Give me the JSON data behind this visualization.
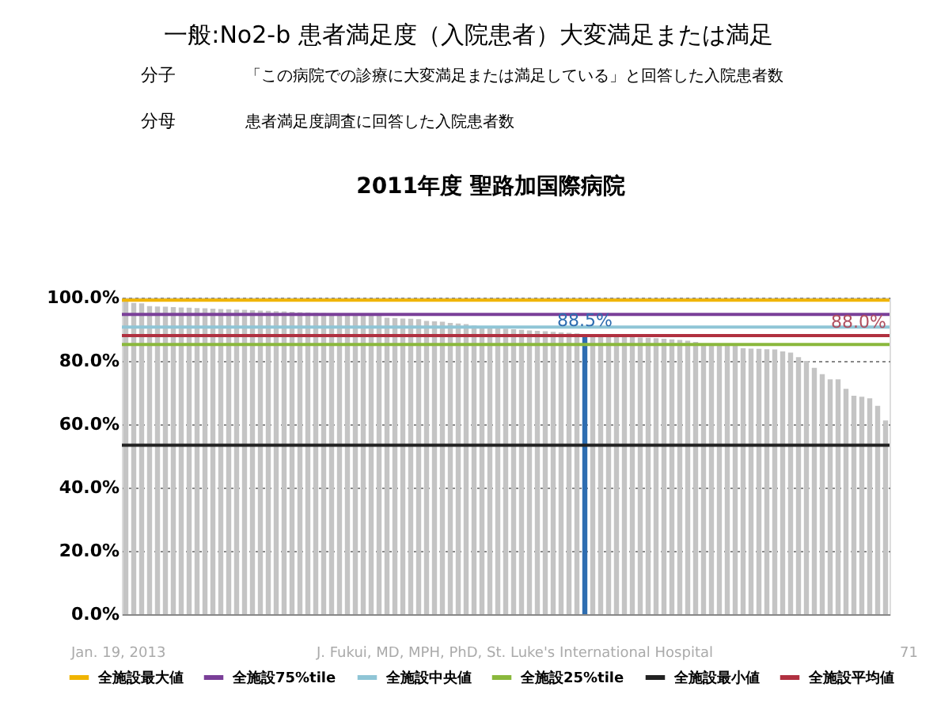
{
  "chart_data": {
    "type": "bar",
    "title": "一般:No2-b 患者満足度（入院患者）大変満足または満足",
    "subtitle": "2011年度 聖路加国際病院",
    "annotations": [
      "分子",
      "「この病院での診療に大変満足または満足している」と回答した入院患者数",
      "分母",
      "患者満足度調査に回答した入院患者数",
      "Jan. 19, 2013",
      "J. Fukui, MD, MPH, PhD, St. Luke's International Hospital",
      "71",
      {
        "text": "88.0%",
        "y": 88.0
      }
    ],
    "categories": [
      null,
      null,
      null,
      null,
      null,
      null,
      null,
      null,
      null,
      null,
      null,
      null,
      null,
      null,
      null,
      null,
      null,
      null,
      null,
      null,
      null,
      null,
      null,
      null,
      null,
      null,
      null,
      null,
      null,
      null,
      null,
      null,
      null,
      null,
      null,
      null,
      null,
      null,
      null,
      null,
      null,
      null,
      null,
      null,
      null,
      null,
      null,
      null,
      null,
      null,
      null,
      null,
      null,
      null,
      null,
      null,
      null,
      null,
      null,
      null,
      null,
      null,
      null,
      null,
      null,
      null,
      null,
      null,
      null,
      null,
      null,
      null,
      null,
      null,
      null,
      null,
      null,
      null,
      null,
      null,
      null,
      null,
      null,
      null,
      null,
      null,
      null,
      null,
      null,
      null,
      null,
      null,
      null,
      null,
      null,
      null,
      null
    ],
    "values": [
      99.0,
      98.3,
      98.2,
      97.3,
      97.2,
      97.1,
      97.0,
      96.9,
      96.8,
      96.7,
      96.6,
      96.5,
      96.4,
      96.3,
      96.2,
      96.1,
      96.0,
      95.9,
      95.8,
      95.7,
      95.6,
      95.5,
      95.4,
      95.3,
      95.2,
      95.1,
      95.0,
      94.9,
      94.8,
      94.7,
      94.6,
      94.5,
      94.4,
      93.6,
      93.5,
      93.4,
      93.3,
      93.2,
      92.6,
      92.5,
      92.4,
      92.0,
      91.8,
      91.6,
      91.2,
      91.0,
      90.8,
      90.6,
      90.2,
      90.0,
      89.8,
      89.6,
      89.5,
      89.4,
      89.2,
      89.0,
      88.9,
      88.7,
      88.5,
      88.2,
      87.9,
      87.8,
      87.7,
      87.6,
      87.5,
      87.4,
      87.3,
      87.2,
      87.0,
      86.8,
      86.6,
      86.4,
      86.0,
      85.4,
      85.3,
      85.2,
      85.1,
      85.0,
      84.0,
      83.9,
      83.8,
      83.7,
      83.6,
      83.0,
      82.6,
      81.2,
      80.0,
      77.8,
      75.8,
      74.2,
      74.2,
      71.2,
      69.0,
      68.7,
      68.2,
      65.8,
      61.2
    ],
    "colors": [
      "#c4c4c4",
      "#c4c4c4",
      "#c4c4c4",
      "#c4c4c4",
      "#c4c4c4",
      "#c4c4c4",
      "#c4c4c4",
      "#c4c4c4",
      "#c4c4c4",
      "#c4c4c4",
      "#c4c4c4",
      "#c4c4c4",
      "#c4c4c4",
      "#c4c4c4",
      "#c4c4c4",
      "#c4c4c4",
      "#c4c4c4",
      "#c4c4c4",
      "#c4c4c4",
      "#c4c4c4",
      "#c4c4c4",
      "#c4c4c4",
      "#c4c4c4",
      "#c4c4c4",
      "#c4c4c4",
      "#c4c4c4",
      "#c4c4c4",
      "#c4c4c4",
      "#c4c4c4",
      "#c4c4c4",
      "#c4c4c4",
      "#c4c4c4",
      "#c4c4c4",
      "#c4c4c4",
      "#c4c4c4",
      "#c4c4c4",
      "#c4c4c4",
      "#c4c4c4",
      "#c4c4c4",
      "#c4c4c4",
      "#c4c4c4",
      "#c4c4c4",
      "#c4c4c4",
      "#c4c4c4",
      "#c4c4c4",
      "#c4c4c4",
      "#c4c4c4",
      "#c4c4c4",
      "#c4c4c4",
      "#c4c4c4",
      "#c4c4c4",
      "#c4c4c4",
      "#c4c4c4",
      "#c4c4c4",
      "#c4c4c4",
      "#c4c4c4",
      "#c4c4c4",
      "#c4c4c4",
      "#2e6db0",
      "#c4c4c4",
      "#c4c4c4",
      "#c4c4c4",
      "#c4c4c4",
      "#c4c4c4",
      "#c4c4c4",
      "#c4c4c4",
      "#c4c4c4",
      "#c4c4c4",
      "#c4c4c4",
      "#c4c4c4",
      "#c4c4c4",
      "#c4c4c4",
      "#c4c4c4",
      "#c4c4c4",
      "#c4c4c4",
      "#c4c4c4",
      "#c4c4c4",
      "#c4c4c4",
      "#c4c4c4",
      "#c4c4c4",
      "#c4c4c4",
      "#c4c4c4",
      "#c4c4c4",
      "#c4c4c4",
      "#c4c4c4",
      "#c4c4c4",
      "#c4c4c4",
      "#c4c4c4",
      "#c4c4c4",
      "#c4c4c4",
      "#c4c4c4",
      "#c4c4c4",
      "#c4c4c4",
      "#c4c4c4",
      "#c4c4c4",
      "#c4c4c4",
      "#c4c4c4"
    ],
    "value_labels": [
      null,
      null,
      null,
      null,
      null,
      null,
      null,
      null,
      null,
      null,
      null,
      null,
      null,
      null,
      null,
      null,
      null,
      null,
      null,
      null,
      null,
      null,
      null,
      null,
      null,
      null,
      null,
      null,
      null,
      null,
      null,
      null,
      null,
      null,
      null,
      null,
      null,
      null,
      null,
      null,
      null,
      null,
      null,
      null,
      null,
      null,
      null,
      null,
      null,
      null,
      null,
      null,
      null,
      null,
      null,
      null,
      null,
      null,
      "88.5%",
      null,
      null,
      null,
      null,
      null,
      null,
      null,
      null,
      null,
      null,
      null,
      null,
      null,
      null,
      null,
      null,
      null,
      null,
      null,
      null,
      null,
      null,
      null,
      null,
      null,
      null,
      null,
      null,
      null,
      null,
      null,
      null,
      null,
      null,
      null,
      null,
      null,
      null
    ],
    "ylim": [
      0,
      100
    ],
    "yticks": [
      {
        "value": 0,
        "label": "0.0%"
      },
      {
        "value": 20,
        "label": "20.0%"
      },
      {
        "value": 40,
        "label": "40.0%"
      },
      {
        "value": 60,
        "label": "60.0%"
      },
      {
        "value": 80,
        "label": "80.0%"
      },
      {
        "value": 100,
        "label": "100.0%"
      }
    ],
    "ref_lines": [
      {
        "axis": "y",
        "value": 99.2,
        "label": "全施設最大値",
        "color": "#f0b400"
      },
      {
        "axis": "y",
        "value": 94.7,
        "label": "全施設75%tile",
        "color": "#7a3f98"
      },
      {
        "axis": "y",
        "value": 90.7,
        "label": "全施設中央値",
        "color": "#8fc5d6"
      },
      {
        "axis": "y",
        "value": 85.2,
        "label": "全施設25%tile",
        "color": "#8ab83c"
      },
      {
        "axis": "y",
        "value": 53.4,
        "label": "全施設最小値",
        "color": "#222222"
      },
      {
        "axis": "y",
        "value": 88.0,
        "label": "全施設平均値",
        "color": "#b03040"
      }
    ],
    "grid": "y",
    "legend": "bottom",
    "tick_labels": "y"
  }
}
